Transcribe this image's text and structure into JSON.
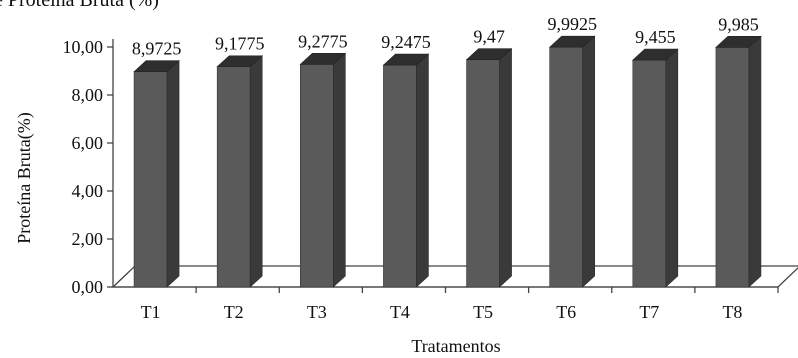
{
  "chart_data": {
    "type": "bar",
    "title": "e Proteína Bruta (%)",
    "xlabel": "Tratamentos",
    "ylabel": "Proteína Bruta(%)",
    "categories": [
      "T1",
      "T2",
      "T3",
      "T4",
      "T5",
      "T6",
      "T7",
      "T8"
    ],
    "values": [
      8.9725,
      9.1775,
      9.2775,
      9.2475,
      9.47,
      9.9925,
      9.455,
      9.985
    ],
    "value_labels": [
      "8,9725",
      "9,1775",
      "9,2775",
      "9,2475",
      "9,47",
      "9,9925",
      "9,455",
      "9,985"
    ],
    "yticks": [
      "0,00",
      "2,00",
      "4,00",
      "6,00",
      "8,00",
      "10,00"
    ],
    "ylim": [
      0,
      10
    ],
    "style": "3d-bar",
    "grid": false,
    "colors": {
      "bar_front": "#5a5a5a",
      "bar_side": "#3a3a3a",
      "bar_top": "#2e2e2e",
      "axis": "#444444",
      "floor": "#ffffff"
    }
  }
}
